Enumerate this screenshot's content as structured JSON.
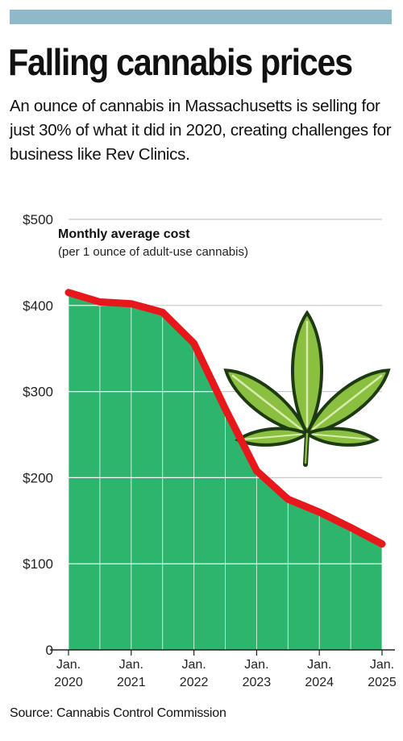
{
  "page": {
    "title": "Falling cannabis prices",
    "subtitle": "An ounce of cannabis in Massachusetts is selling for just 30% of what it did in 2020, creating challenges for business like Rev Clinics.",
    "source": "Source: Cannabis Control Commission"
  },
  "colors": {
    "bar": "#8fb8c8",
    "area": "#2db56e",
    "line": "#e8171b",
    "grid": "#ffffff"
  },
  "icons": [
    "cannabis-leaf-icon"
  ],
  "chart_data": {
    "type": "area",
    "title": "Monthly average cost",
    "subtitle": "(per 1 ounce of adult-use cannabis)",
    "ylim": [
      0,
      500
    ],
    "y_ticks": [
      "$500",
      "$400",
      "$300",
      "$200",
      "$100",
      "0"
    ],
    "x_ticks": [
      {
        "line1": "Jan.",
        "line2": "2020",
        "x": 2020.0
      },
      {
        "line1": "Jan.",
        "line2": "2021",
        "x": 2021.0
      },
      {
        "line1": "Jan.",
        "line2": "2022",
        "x": 2022.0
      },
      {
        "line1": "Jan.",
        "line2": "2023",
        "x": 2023.0
      },
      {
        "line1": "Jan.",
        "line2": "2024",
        "x": 2024.0
      },
      {
        "line1": "Jan.",
        "line2": "2025",
        "x": 2025.0
      }
    ],
    "xlim": [
      2020.0,
      2025.0
    ],
    "grid": true,
    "series": [
      {
        "x": [
          2020.0,
          2020.5,
          2021.0,
          2021.5,
          2022.0,
          2022.5,
          2023.0,
          2023.5,
          2024.0,
          2024.5,
          2025.0
        ],
        "values": [
          415,
          404,
          402,
          392,
          356,
          280,
          208,
          175,
          160,
          142,
          123
        ]
      }
    ]
  }
}
